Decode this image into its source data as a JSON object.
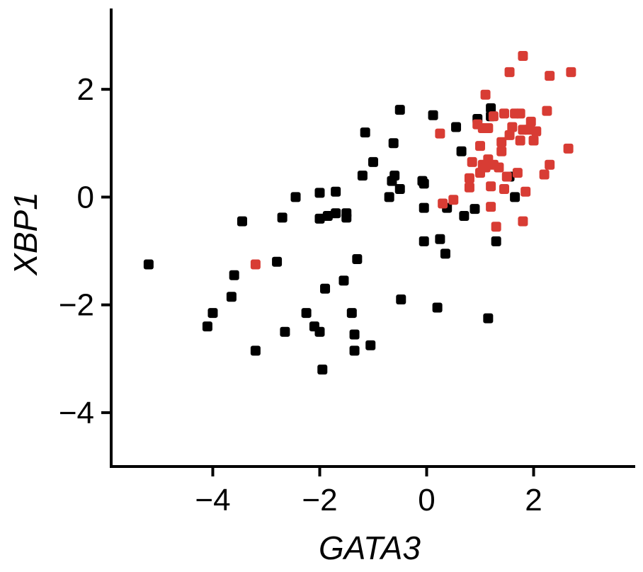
{
  "chart_data": {
    "type": "scatter",
    "xlabel": "GATA3",
    "ylabel": "XBP1",
    "xlim": [
      -5.9,
      3.9
    ],
    "ylim": [
      -5.0,
      3.5
    ],
    "xticks": [
      -4,
      -2,
      0,
      2
    ],
    "yticks": [
      -4,
      -2,
      0,
      2
    ],
    "xtick_labels": [
      "−4",
      "−2",
      "0",
      "2"
    ],
    "ytick_labels": [
      "−4",
      "−2",
      "0",
      "2"
    ],
    "grid": false,
    "legend": "none",
    "marker": "rounded-square",
    "series": [
      {
        "color": "#000000",
        "points": [
          [
            -5.2,
            -1.25
          ],
          [
            -4.1,
            -2.4
          ],
          [
            -4.0,
            -2.15
          ],
          [
            -3.6,
            -1.45
          ],
          [
            -3.65,
            -1.85
          ],
          [
            -3.45,
            -0.45
          ],
          [
            -3.2,
            -2.85
          ],
          [
            -2.8,
            -1.2
          ],
          [
            -2.7,
            -0.38
          ],
          [
            -2.65,
            -2.5
          ],
          [
            -2.45,
            0.0
          ],
          [
            -2.25,
            -2.15
          ],
          [
            -2.1,
            -2.4
          ],
          [
            -2.0,
            -2.5
          ],
          [
            -2.0,
            0.08
          ],
          [
            -2.0,
            -0.4
          ],
          [
            -1.95,
            -3.2
          ],
          [
            -1.9,
            -1.7
          ],
          [
            -1.85,
            -0.35
          ],
          [
            -1.7,
            0.1
          ],
          [
            -1.7,
            -0.3
          ],
          [
            -1.55,
            -1.55
          ],
          [
            -1.5,
            -0.38
          ],
          [
            -1.5,
            -0.3
          ],
          [
            -1.4,
            -2.15
          ],
          [
            -1.35,
            -2.55
          ],
          [
            -1.35,
            -2.85
          ],
          [
            -1.3,
            -1.15
          ],
          [
            -1.2,
            0.4
          ],
          [
            -1.15,
            1.2
          ],
          [
            -1.05,
            -2.75
          ],
          [
            -1.0,
            0.65
          ],
          [
            -0.7,
            0.0
          ],
          [
            -0.65,
            0.3
          ],
          [
            -0.62,
            1.0
          ],
          [
            -0.6,
            0.4
          ],
          [
            -0.5,
            1.62
          ],
          [
            -0.5,
            0.15
          ],
          [
            -0.48,
            -1.9
          ],
          [
            -0.08,
            0.3
          ],
          [
            -0.05,
            0.25
          ],
          [
            -0.05,
            -0.2
          ],
          [
            -0.05,
            -0.82
          ],
          [
            0.12,
            1.52
          ],
          [
            0.2,
            -2.05
          ],
          [
            0.25,
            -0.78
          ],
          [
            0.35,
            -1.05
          ],
          [
            0.38,
            -0.2
          ],
          [
            0.55,
            1.3
          ],
          [
            0.65,
            0.85
          ],
          [
            0.7,
            -0.35
          ],
          [
            0.9,
            -0.22
          ],
          [
            0.95,
            1.45
          ],
          [
            1.15,
            -2.25
          ],
          [
            1.2,
            1.65
          ],
          [
            1.2,
            1.5
          ],
          [
            1.3,
            -0.82
          ],
          [
            1.55,
            0.38
          ],
          [
            1.65,
            0.0
          ]
        ]
      },
      {
        "color": "#d83c34",
        "points": [
          [
            -3.2,
            -1.25
          ],
          [
            0.25,
            1.18
          ],
          [
            0.3,
            -0.12
          ],
          [
            0.5,
            -0.05
          ],
          [
            0.8,
            0.35
          ],
          [
            0.8,
            0.18
          ],
          [
            0.85,
            0.65
          ],
          [
            0.95,
            1.35
          ],
          [
            1.0,
            0.95
          ],
          [
            1.0,
            0.45
          ],
          [
            1.05,
            1.28
          ],
          [
            1.05,
            0.6
          ],
          [
            1.1,
            1.9
          ],
          [
            1.1,
            0.55
          ],
          [
            1.15,
            0.7
          ],
          [
            1.15,
            1.28
          ],
          [
            1.2,
            0.2
          ],
          [
            1.2,
            -0.18
          ],
          [
            1.25,
            0.6
          ],
          [
            1.25,
            1.5
          ],
          [
            1.3,
            -0.55
          ],
          [
            1.35,
            0.55
          ],
          [
            1.4,
            1.02
          ],
          [
            1.4,
            0.85
          ],
          [
            1.45,
            1.55
          ],
          [
            1.45,
            0.15
          ],
          [
            1.5,
            0.38
          ],
          [
            1.55,
            1.15
          ],
          [
            1.55,
            2.32
          ],
          [
            1.6,
            1.3
          ],
          [
            1.65,
            1.55
          ],
          [
            1.7,
            0.45
          ],
          [
            1.75,
            1.05
          ],
          [
            1.75,
            1.55
          ],
          [
            1.8,
            2.62
          ],
          [
            1.8,
            -0.45
          ],
          [
            1.8,
            1.25
          ],
          [
            1.85,
            0.1
          ],
          [
            1.9,
            1.25
          ],
          [
            1.95,
            1.4
          ],
          [
            2.0,
            1.05
          ],
          [
            2.05,
            1.22
          ],
          [
            2.2,
            0.42
          ],
          [
            2.25,
            1.6
          ],
          [
            2.3,
            2.25
          ],
          [
            2.3,
            0.6
          ],
          [
            2.65,
            0.9
          ],
          [
            2.7,
            2.32
          ]
        ]
      }
    ]
  }
}
